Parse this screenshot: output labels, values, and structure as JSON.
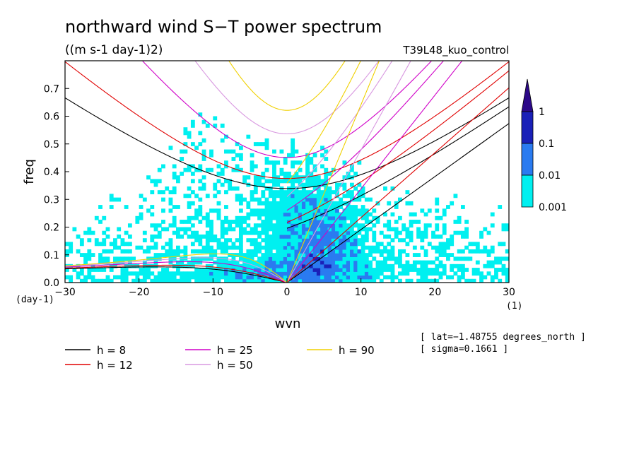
{
  "chart_data": {
    "type": "heatmap",
    "title": "northward wind S−T power spectrum",
    "subtitle": "((m s-1 day-1)2)",
    "run_label": "T39L48_kuo_control",
    "xlabel": "wvn",
    "ylabel": "freq",
    "x_unit": "(1)",
    "y_unit": "(day-1)",
    "xlim": [
      -30,
      30
    ],
    "ylim": [
      0,
      0.8
    ],
    "xticks": [
      -30,
      -20,
      -10,
      0,
      10,
      20,
      30
    ],
    "xtick_labels": [
      "−30",
      "−20",
      "−10",
      "0",
      "10",
      "20",
      "30"
    ],
    "yticks": [
      0.0,
      0.1,
      0.2,
      0.3,
      0.4,
      0.5,
      0.6,
      0.7
    ],
    "ytick_labels": [
      "0.0",
      "0.1",
      "0.2",
      "0.3",
      "0.4",
      "0.5",
      "0.6",
      "0.7"
    ],
    "colorbar": {
      "levels": [
        0.001,
        0.01,
        0.1,
        1
      ],
      "labels": [
        "0.001",
        "0.01",
        "0.1",
        "1"
      ],
      "colors": [
        "#00f0f0",
        "#2a7bf0",
        "#1a20b8",
        "#2c0888"
      ],
      "extend": "max"
    },
    "dispersion_curves": [
      {
        "label": "h = 8",
        "h": 8,
        "color": "#000000"
      },
      {
        "label": "h = 12",
        "h": 12,
        "color": "#e00000"
      },
      {
        "label": "h = 25",
        "h": 25,
        "color": "#d000c8"
      },
      {
        "label": "h = 50",
        "h": 50,
        "color": "#d898e0"
      },
      {
        "label": "h = 90",
        "h": 90,
        "color": "#f0d000"
      }
    ],
    "annotations": [
      "[ lat=−1.48755 degrees_north ]",
      "[ sigma=0.1661 ]"
    ]
  }
}
